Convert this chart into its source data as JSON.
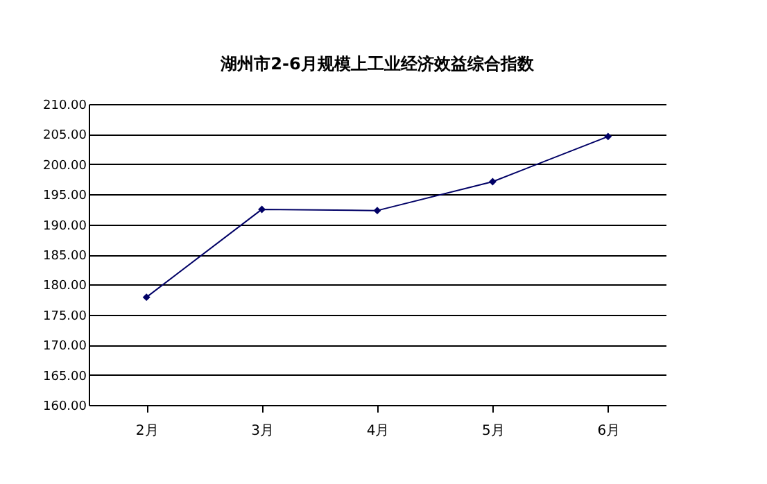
{
  "chart_data": {
    "type": "line",
    "title": "湖州市2-6月规模上工业经济效益综合指数",
    "categories": [
      "2月",
      "3月",
      "4月",
      "5月",
      "6月"
    ],
    "series": [
      {
        "color": "#000066",
        "values": [
          177.9,
          192.5,
          192.3,
          197.1,
          204.6
        ]
      }
    ],
    "ylim": [
      160,
      210
    ],
    "yticks": [
      {
        "value": 160,
        "label": "160.00"
      },
      {
        "value": 165,
        "label": "165.00"
      },
      {
        "value": 170,
        "label": "170.00"
      },
      {
        "value": 175,
        "label": "175.00"
      },
      {
        "value": 180,
        "label": "180.00"
      },
      {
        "value": 185,
        "label": "185.00"
      },
      {
        "value": 190,
        "label": "190.00"
      },
      {
        "value": 195,
        "label": "195.00"
      },
      {
        "value": 200,
        "label": "200.00"
      },
      {
        "value": 205,
        "label": "205.00"
      },
      {
        "value": 210,
        "label": "210.00"
      }
    ],
    "grid": "y",
    "marker": "diamond",
    "line_style": "solid"
  }
}
